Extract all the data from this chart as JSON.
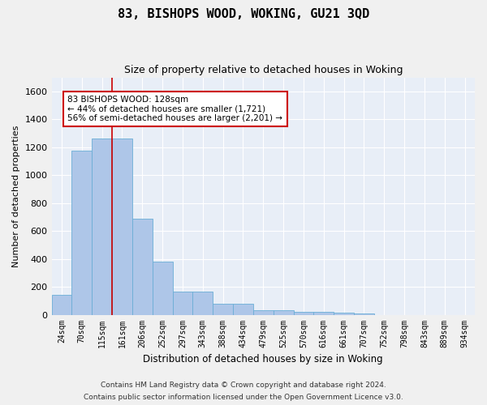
{
  "title": "83, BISHOPS WOOD, WOKING, GU21 3QD",
  "subtitle": "Size of property relative to detached houses in Woking",
  "xlabel": "Distribution of detached houses by size in Woking",
  "ylabel": "Number of detached properties",
  "bar_labels": [
    "24sqm",
    "70sqm",
    "115sqm",
    "161sqm",
    "206sqm",
    "252sqm",
    "297sqm",
    "343sqm",
    "388sqm",
    "434sqm",
    "479sqm",
    "525sqm",
    "570sqm",
    "616sqm",
    "661sqm",
    "707sqm",
    "752sqm",
    "798sqm",
    "843sqm",
    "889sqm",
    "934sqm"
  ],
  "bar_values": [
    145,
    1175,
    1265,
    1265,
    685,
    380,
    165,
    165,
    80,
    80,
    35,
    35,
    20,
    20,
    15,
    10,
    0,
    0,
    0,
    0,
    0
  ],
  "bar_color": "#aec6e8",
  "bar_edge_color": "#6baed6",
  "vline_x": 2.5,
  "vline_color": "#cc0000",
  "annotation_text": "83 BISHOPS WOOD: 128sqm\n← 44% of detached houses are smaller (1,721)\n56% of semi-detached houses are larger (2,201) →",
  "annotation_box_color": "#ffffff",
  "annotation_box_edge": "#cc0000",
  "ylim": [
    0,
    1700
  ],
  "yticks": [
    0,
    200,
    400,
    600,
    800,
    1000,
    1200,
    1400,
    1600
  ],
  "bg_color": "#e8eef7",
  "grid_color": "#ffffff",
  "footer1": "Contains HM Land Registry data © Crown copyright and database right 2024.",
  "footer2": "Contains public sector information licensed under the Open Government Licence v3.0."
}
